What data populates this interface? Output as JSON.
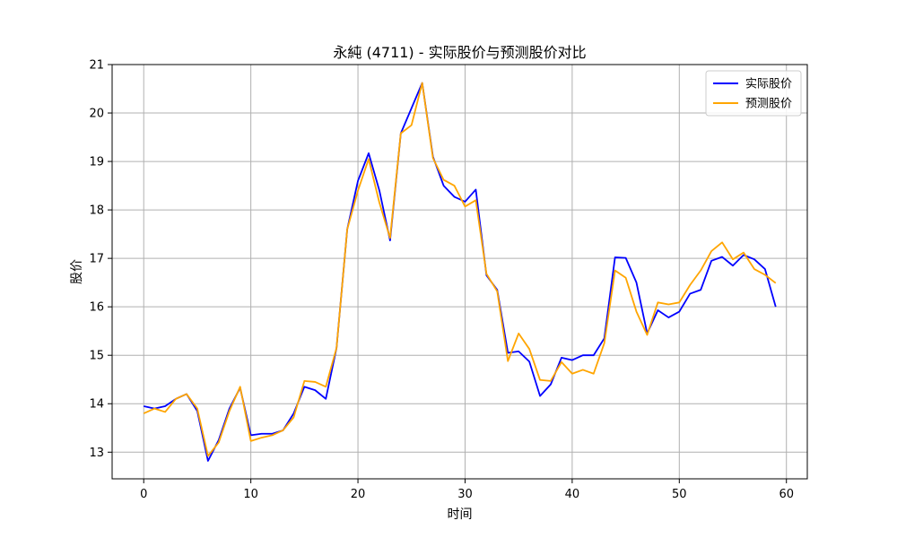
{
  "chart_data": {
    "type": "line",
    "title": "永純 (4711) - 实际股价与预测股价对比",
    "xlabel": "时间",
    "ylabel": "股价",
    "xlim": [
      -2.95,
      61.95
    ],
    "ylim": [
      12.45,
      21.0
    ],
    "xticks": [
      0,
      10,
      20,
      30,
      40,
      50,
      60
    ],
    "yticks": [
      13,
      14,
      15,
      16,
      17,
      18,
      19,
      20,
      21
    ],
    "grid": true,
    "legend_position": "top-right",
    "x": [
      0,
      1,
      2,
      3,
      4,
      5,
      6,
      7,
      8,
      9,
      10,
      11,
      12,
      13,
      14,
      15,
      16,
      17,
      18,
      19,
      20,
      21,
      22,
      23,
      24,
      25,
      26,
      27,
      28,
      29,
      30,
      31,
      32,
      33,
      34,
      35,
      36,
      37,
      38,
      39,
      40,
      41,
      42,
      43,
      44,
      45,
      46,
      47,
      48,
      49,
      50,
      51,
      52,
      53,
      54,
      55,
      56,
      57,
      58,
      59
    ],
    "series": [
      {
        "name": "实际股价",
        "color": "#0000ff",
        "values": [
          13.95,
          13.9,
          13.95,
          14.1,
          14.2,
          13.85,
          12.82,
          13.25,
          13.9,
          14.33,
          13.35,
          13.38,
          13.38,
          13.45,
          13.8,
          14.35,
          14.28,
          14.1,
          15.15,
          17.6,
          18.6,
          19.17,
          18.4,
          17.37,
          19.58,
          20.1,
          20.62,
          19.1,
          18.5,
          18.27,
          18.17,
          18.42,
          16.65,
          16.35,
          15.05,
          15.08,
          14.87,
          14.16,
          14.4,
          14.95,
          14.9,
          15.0,
          15.0,
          15.35,
          17.02,
          17.01,
          16.5,
          15.45,
          15.93,
          15.78,
          15.9,
          16.27,
          16.35,
          16.95,
          17.03,
          16.85,
          17.07,
          16.98,
          16.78,
          16.0
        ]
      },
      {
        "name": "预测股价",
        "color": "#ffa500",
        "values": [
          13.8,
          13.9,
          13.83,
          14.1,
          14.2,
          13.9,
          12.92,
          13.2,
          13.85,
          14.35,
          13.23,
          13.3,
          13.35,
          13.45,
          13.72,
          14.47,
          14.45,
          14.35,
          15.15,
          17.6,
          18.4,
          19.05,
          18.15,
          17.42,
          19.58,
          19.75,
          20.62,
          19.07,
          18.62,
          18.5,
          18.07,
          18.2,
          16.68,
          16.32,
          14.88,
          15.45,
          15.13,
          14.49,
          14.47,
          14.86,
          14.62,
          14.7,
          14.62,
          15.25,
          16.75,
          16.6,
          15.9,
          15.42,
          16.09,
          16.05,
          16.09,
          16.45,
          16.75,
          17.15,
          17.33,
          16.98,
          17.12,
          16.78,
          16.66,
          16.49
        ]
      }
    ]
  }
}
